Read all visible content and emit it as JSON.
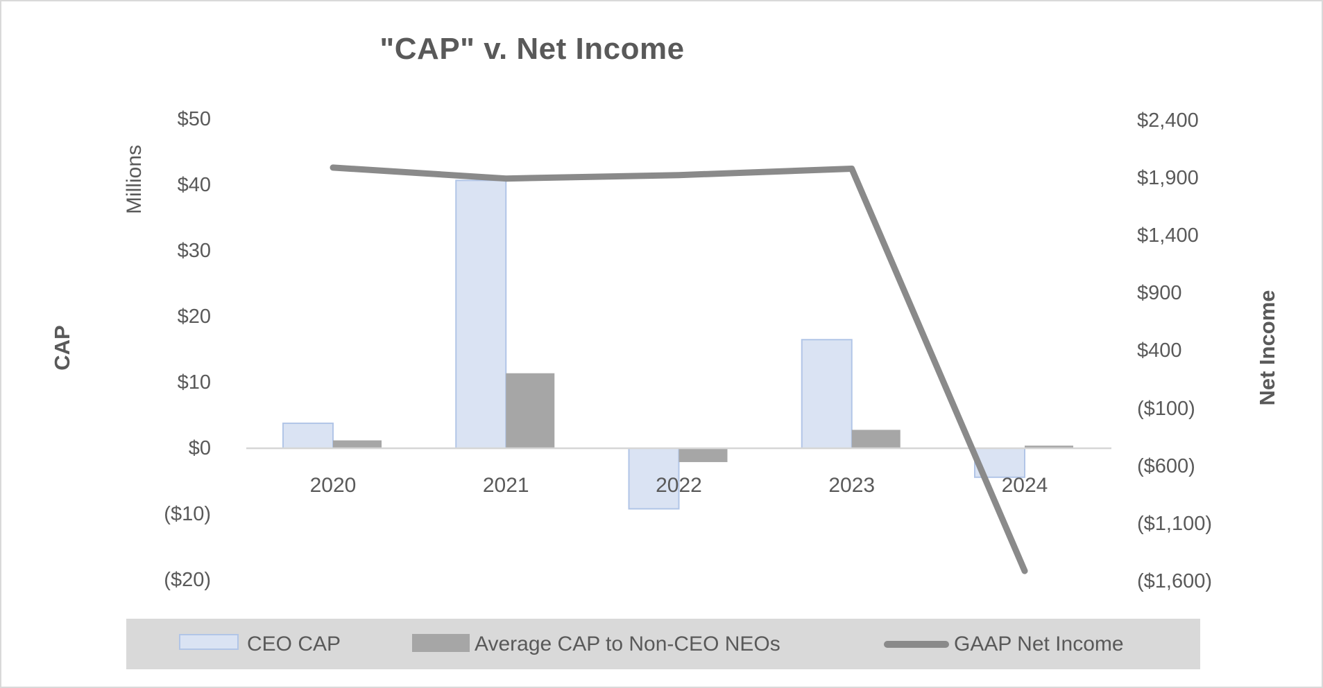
{
  "page": {
    "title": "\"CAP\" v. Net Income"
  },
  "left_axis": {
    "axis_title": "CAP",
    "units_label": "Millions",
    "tick_labels": [
      "$50",
      "$40",
      "$30",
      "$20",
      "$10",
      "$0",
      "($10)",
      "($20)"
    ],
    "tick_values": [
      50,
      40,
      30,
      20,
      10,
      0,
      -10,
      -20
    ]
  },
  "right_axis": {
    "axis_title": "Net Income",
    "tick_labels": [
      "$2,400",
      "$1,900",
      "$1,400",
      "$900",
      "$400",
      "($100)",
      "($600)",
      "($1,100)",
      "($1,600)"
    ],
    "tick_values": [
      2400,
      1900,
      1400,
      900,
      400,
      -100,
      -600,
      -1100,
      -1600
    ]
  },
  "x_axis": {
    "categories": [
      "2020",
      "2021",
      "2022",
      "2023",
      "2024"
    ]
  },
  "legend": {
    "items": [
      {
        "label": "CEO CAP",
        "swatch": "blue-bar"
      },
      {
        "label": "Average CAP to Non-CEO NEOs",
        "swatch": "gray-bar"
      },
      {
        "label": "GAAP Net Income",
        "swatch": "gray-line"
      }
    ]
  },
  "colors": {
    "ceo_cap_fill": "#dae3f3",
    "ceo_cap_border": "#b1c5e7",
    "neo_cap_fill": "#a6a6a6",
    "net_income_line": "#8a8a8a",
    "axis_line": "#d6d6d6",
    "text": "#595959",
    "legend_background": "#d9d9d9",
    "page_border": "#d9d9d9"
  },
  "chart_data": {
    "type": "combo",
    "subtypes": [
      "bar",
      "bar",
      "line"
    ],
    "title": "\"CAP\" v. Net Income",
    "categories": [
      "2020",
      "2021",
      "2022",
      "2023",
      "2024"
    ],
    "series": [
      {
        "name": "CEO CAP",
        "type": "bar",
        "axis": "left",
        "values": [
          3.8,
          40.7,
          -9.2,
          16.5,
          -4.4
        ]
      },
      {
        "name": "Average CAP to Non-CEO NEOs",
        "type": "bar",
        "axis": "left",
        "values": [
          1.2,
          11.4,
          -2.1,
          2.8,
          0.4
        ]
      },
      {
        "name": "GAAP Net Income",
        "type": "line",
        "axis": "right",
        "values": [
          1990,
          1895,
          1925,
          1980,
          -1510
        ]
      }
    ],
    "left_axis_label": "CAP (Millions)",
    "right_axis_label": "Net Income",
    "left_ylim": [
      -20,
      50
    ],
    "left_tick_step": 10,
    "right_ylim": [
      -1600,
      2400
    ],
    "right_tick_step": 500,
    "units": "USD millions",
    "grid": false,
    "legend_position": "bottom"
  }
}
